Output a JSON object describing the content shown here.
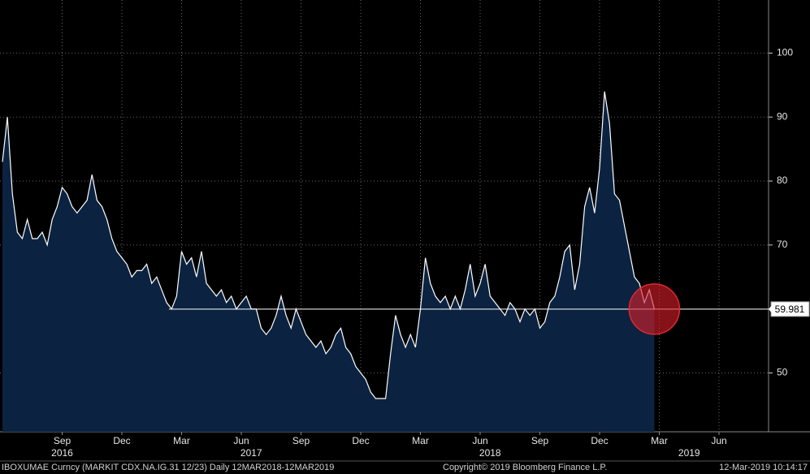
{
  "chart_data": {
    "type": "area-line",
    "ticker": "IBOXUMAE Curncy (MARKIT CDX.NA.IG.31 12/23)  Daily 12MAR2018-12MAR2019",
    "copyright": "Copyright© 2019 Bloomberg Finance L.P.",
    "timestamp": "12-Mar-2019 10:14:17",
    "categories": [
      null,
      null,
      null,
      null,
      null,
      null,
      null,
      null,
      null,
      null,
      null,
      null,
      "Sep",
      null,
      null,
      null,
      null,
      null,
      null,
      null,
      null,
      null,
      null,
      null,
      "Dec",
      null,
      null,
      null,
      null,
      null,
      null,
      null,
      null,
      null,
      null,
      null,
      "Mar",
      null,
      null,
      null,
      null,
      null,
      null,
      null,
      null,
      null,
      null,
      null,
      "Jun",
      null,
      null,
      null,
      null,
      null,
      null,
      null,
      null,
      null,
      null,
      null,
      "Sep",
      null,
      null,
      null,
      null,
      null,
      null,
      null,
      null,
      null,
      null,
      null,
      "Dec",
      null,
      null,
      null,
      null,
      null,
      null,
      null,
      null,
      null,
      null,
      null,
      "Mar",
      null,
      null,
      null,
      null,
      null,
      null,
      null,
      null,
      null,
      null,
      null,
      "Jun",
      null,
      null,
      null,
      null,
      null,
      null,
      null,
      null,
      null,
      null,
      null,
      "Sep",
      null,
      null,
      null,
      null,
      null,
      null,
      null,
      null,
      null,
      null,
      null,
      "Dec",
      null,
      null,
      null,
      null,
      null,
      null,
      null,
      null,
      null,
      null,
      null,
      "Mar",
      null,
      null,
      null,
      null,
      null,
      null,
      null,
      null,
      null,
      null,
      null,
      "Jun",
      null,
      null,
      null,
      null,
      null,
      null,
      null,
      null,
      null,
      null
    ],
    "years": [
      null,
      null,
      null,
      null,
      null,
      null,
      null,
      null,
      null,
      null,
      null,
      null,
      "2016",
      null,
      null,
      null,
      null,
      null,
      null,
      null,
      null,
      null,
      null,
      null,
      null,
      null,
      null,
      null,
      null,
      null,
      null,
      null,
      null,
      null,
      null,
      null,
      null,
      null,
      null,
      null,
      null,
      null,
      null,
      null,
      null,
      null,
      null,
      null,
      null,
      null,
      "2017",
      null,
      null,
      null,
      null,
      null,
      null,
      null,
      null,
      null,
      null,
      null,
      null,
      null,
      null,
      null,
      null,
      null,
      null,
      null,
      null,
      null,
      null,
      null,
      null,
      null,
      null,
      null,
      null,
      null,
      null,
      null,
      null,
      null,
      null,
      null,
      null,
      null,
      null,
      null,
      null,
      null,
      null,
      null,
      null,
      null,
      null,
      null,
      "2018",
      null,
      null,
      null,
      null,
      null,
      null,
      null,
      null,
      null,
      null,
      null,
      null,
      null,
      null,
      null,
      null,
      null,
      null,
      null,
      null,
      null,
      null,
      null,
      null,
      null,
      null,
      null,
      null,
      null,
      null,
      null,
      null,
      null,
      null,
      null,
      null,
      null,
      null,
      null,
      "2019",
      null,
      null,
      null,
      null,
      null,
      null,
      null,
      null,
      null,
      null,
      null,
      null,
      null,
      null,
      null,
      null
    ],
    "values": [
      83,
      90,
      78,
      72,
      71,
      74,
      71,
      71,
      72,
      70,
      74,
      76,
      79,
      78,
      76,
      75,
      76,
      77,
      81,
      77,
      76,
      74,
      71,
      69,
      68,
      67,
      65,
      66,
      66,
      67,
      64,
      65,
      63,
      61,
      60,
      62,
      69,
      67,
      68,
      65,
      69,
      64,
      63,
      62,
      63,
      61,
      62,
      60,
      61,
      62,
      60,
      60,
      57,
      56,
      57,
      59,
      62,
      59,
      57,
      60,
      58,
      56,
      55,
      54,
      55,
      53,
      54,
      56,
      57,
      54,
      53,
      51,
      50,
      49,
      47,
      46,
      46,
      46,
      53,
      59,
      56,
      54,
      56,
      54,
      60,
      68,
      64,
      62,
      61,
      62,
      60,
      62,
      60,
      63,
      67,
      62,
      64,
      67,
      62,
      61,
      60,
      59,
      61,
      60,
      58,
      60,
      59,
      60,
      57,
      58,
      61,
      62,
      65,
      69,
      70,
      63,
      67,
      76,
      79,
      75,
      82,
      94,
      89,
      78,
      77,
      73,
      69,
      65,
      64,
      61,
      63,
      60,
      null,
      null,
      null,
      null,
      null,
      null,
      null,
      null,
      null,
      null,
      null,
      null,
      null,
      null,
      null,
      null,
      null,
      null,
      null,
      null,
      null,
      null,
      null
    ],
    "last_value": 59.981,
    "color": "#0b2341",
    "line_color": "#ffffff",
    "ylim": [
      40.8,
      108.3
    ],
    "yticks": [
      50,
      70,
      80,
      90,
      100
    ],
    "grid": true
  }
}
